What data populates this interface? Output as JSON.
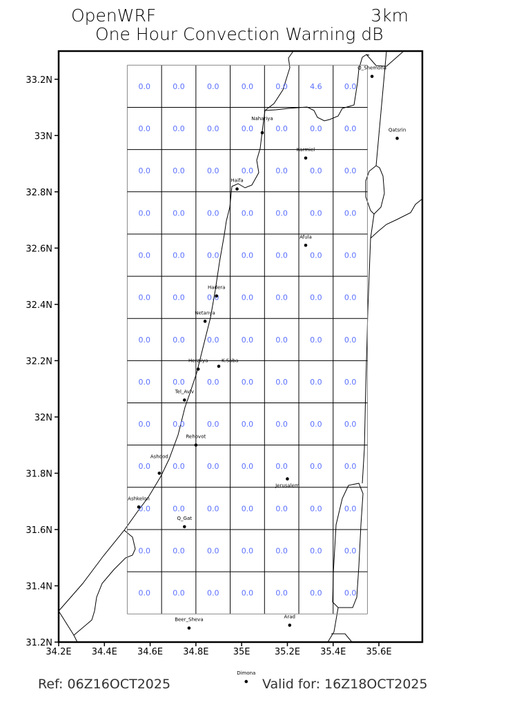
{
  "header": {
    "model": "OpenWRF",
    "resolution": "3km",
    "title": "One Hour Convection Warning dB"
  },
  "footer": {
    "ref": "Ref: 06Z16OCT2025",
    "valid": "Valid for: 16Z18OCT2025"
  },
  "chart_data": {
    "type": "heatmap",
    "title": "One Hour Convection Warning dB",
    "xlim": [
      34.2,
      35.79
    ],
    "ylim": [
      31.2,
      33.3
    ],
    "x_ticks": [
      "34.2E",
      "34.4E",
      "34.6E",
      "34.8E",
      "35E",
      "35.2E",
      "35.4E",
      "35.6E"
    ],
    "x_tick_values": [
      34.2,
      34.4,
      34.6,
      34.8,
      35.0,
      35.2,
      35.4,
      35.6
    ],
    "y_ticks": [
      "31.2N",
      "31.4N",
      "31.6N",
      "31.8N",
      "32N",
      "32.2N",
      "32.4N",
      "32.6N",
      "32.8N",
      "33N",
      "33.2N"
    ],
    "y_tick_values": [
      31.2,
      31.4,
      31.6,
      31.8,
      32.0,
      32.2,
      32.4,
      32.6,
      32.8,
      33.0,
      33.2
    ],
    "value_color": "#5a70ff",
    "grid": {
      "lon_range": [
        34.5,
        35.55
      ],
      "lat_range": [
        31.3,
        33.25
      ],
      "rows": [
        [
          "0.0",
          "0.0",
          "0.0",
          "0.0",
          "0.0",
          "4.6",
          "0.0"
        ],
        [
          "0.0",
          "0.0",
          "0.0",
          "0.0",
          "0.0",
          "0.0",
          "0.0"
        ],
        [
          "0.0",
          "0.0",
          "0.0",
          "0.0",
          "0.0",
          "0.0",
          "0.0"
        ],
        [
          "0.0",
          "0.0",
          "0.0",
          "0.0",
          "0.0",
          "0.0",
          "0.0"
        ],
        [
          "0.0",
          "0.0",
          "0.0",
          "0.0",
          "0.0",
          "0.0",
          "0.0"
        ],
        [
          "0.0",
          "0.0",
          "0.0",
          "0.0",
          "0.0",
          "0.0",
          "0.0"
        ],
        [
          "0.0",
          "0.0",
          "0.0",
          "0.0",
          "0.0",
          "0.0",
          "0.0"
        ],
        [
          "0.0",
          "0.0",
          "0.0",
          "0.0",
          "0.0",
          "0.0",
          "0.0"
        ],
        [
          "0.0",
          "0.0",
          "0.0",
          "0.0",
          "0.0",
          "0.0",
          "0.0"
        ],
        [
          "0.0",
          "0.0",
          "0.0",
          "0.0",
          "0.0",
          "0.0",
          "0.0"
        ],
        [
          "0.0",
          "0.0",
          "0.0",
          "0.0",
          "0.0",
          "0.0",
          "0.0"
        ],
        [
          "0.0",
          "0.0",
          "0.0",
          "0.0",
          "0.0",
          "0.0",
          "0.0"
        ],
        [
          "0.0",
          "0.0",
          "0.0",
          "0.0",
          "0.0",
          "0.0",
          "0.0"
        ]
      ]
    },
    "cities": [
      {
        "name": "Q_Shemona",
        "lon": 35.57,
        "lat": 33.21
      },
      {
        "name": "Qatsrin",
        "lon": 35.68,
        "lat": 32.99
      },
      {
        "name": "Nahariya",
        "lon": 35.09,
        "lat": 33.01
      },
      {
        "name": "Karmiel",
        "lon": 35.28,
        "lat": 32.92
      },
      {
        "name": "Haifa",
        "lon": 34.98,
        "lat": 32.81
      },
      {
        "name": "Afula",
        "lon": 35.28,
        "lat": 32.61
      },
      {
        "name": "Hadera",
        "lon": 34.89,
        "lat": 32.43
      },
      {
        "name": "Netanya",
        "lon": 34.84,
        "lat": 32.34
      },
      {
        "name": "Herzliya",
        "lon": 34.81,
        "lat": 32.17
      },
      {
        "name": "K.Saba",
        "lon": 34.9,
        "lat": 32.18
      },
      {
        "name": "Tel_Aviv",
        "lon": 34.75,
        "lat": 32.06
      },
      {
        "name": "Rehovot",
        "lon": 34.8,
        "lat": 31.9
      },
      {
        "name": "Ashdod",
        "lon": 34.64,
        "lat": 31.8
      },
      {
        "name": "Jerusalem",
        "lon": 35.2,
        "lat": 31.78
      },
      {
        "name": "Ashkelon",
        "lon": 34.55,
        "lat": 31.68
      },
      {
        "name": "Q_Gat",
        "lon": 34.75,
        "lat": 31.61
      },
      {
        "name": "Beer_Sheva",
        "lon": 34.77,
        "lat": 31.25
      },
      {
        "name": "Arad",
        "lon": 35.21,
        "lat": 31.26
      },
      {
        "name": "Dimona",
        "lon": 35.02,
        "lat": 31.06
      }
    ]
  }
}
